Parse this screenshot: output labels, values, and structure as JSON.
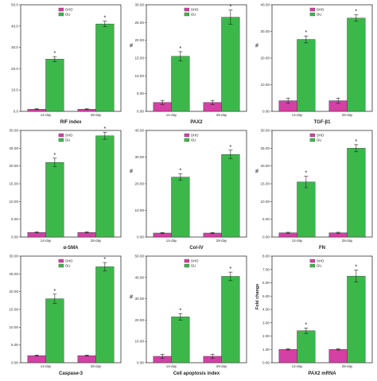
{
  "colors": {
    "sho": "#d63fa4",
    "gu": "#3cb84a",
    "axis": "#333333"
  },
  "chart_data": [
    {
      "type": "bar",
      "xlabel": "RIF index",
      "ylabel": "",
      "ylim": [
        0,
        50
      ],
      "yticks": [
        "0.0",
        "10.0",
        "20.0",
        "30.0",
        "40.0",
        "50.0"
      ],
      "categories": [
        "14-day",
        "28-day"
      ],
      "legend": [
        "SHO",
        "GU"
      ],
      "legend_position": "top-left",
      "series": [
        {
          "name": "SHO",
          "values": [
            1.0,
            1.0
          ],
          "errors": [
            0.2,
            0.2
          ]
        },
        {
          "name": "GU",
          "values": [
            24.5,
            41.0
          ],
          "errors": [
            1.2,
            1.3
          ]
        }
      ],
      "significance": [
        "*",
        "*"
      ]
    },
    {
      "type": "bar",
      "xlabel": "PAX2",
      "ylabel": "%",
      "ylim": [
        0,
        30
      ],
      "yticks": [
        "0.00",
        "5.00",
        "10.00",
        "15.00",
        "20.00",
        "25.00",
        "30.00"
      ],
      "categories": [
        "14-day",
        "28-day"
      ],
      "legend": [
        "SHO",
        "GU"
      ],
      "legend_position": "top-left",
      "series": [
        {
          "name": "SHO",
          "values": [
            2.5,
            2.5
          ],
          "errors": [
            0.6,
            0.6
          ]
        },
        {
          "name": "GU",
          "values": [
            15.5,
            26.5
          ],
          "errors": [
            1.3,
            2.0
          ]
        }
      ],
      "significance": [
        "*",
        "*"
      ]
    },
    {
      "type": "bar",
      "xlabel": "TGF-β1",
      "ylabel": "%",
      "ylim": [
        0,
        40
      ],
      "yticks": [
        "0.00",
        "10.00",
        "20.00",
        "30.00",
        "40.00"
      ],
      "categories": [
        "14-day",
        "28-day"
      ],
      "legend": [
        "SHO",
        "GU"
      ],
      "legend_position": "top-left",
      "series": [
        {
          "name": "SHO",
          "values": [
            4.0,
            4.0
          ],
          "errors": [
            1.0,
            1.0
          ]
        },
        {
          "name": "GU",
          "values": [
            27.0,
            35.0
          ],
          "errors": [
            1.3,
            1.2
          ]
        }
      ],
      "significance": [
        "*",
        "*"
      ]
    },
    {
      "type": "bar",
      "xlabel": "α-SMA",
      "ylabel": "",
      "ylim": [
        0,
        30
      ],
      "yticks": [
        "0.00",
        "5.00",
        "10.00",
        "15.00",
        "20.00",
        "25.00",
        "30.00"
      ],
      "categories": [
        "14-day",
        "28-day"
      ],
      "legend": [
        "SHO",
        "GU"
      ],
      "legend_position": "top-left",
      "series": [
        {
          "name": "SHO",
          "values": [
            1.3,
            1.3
          ],
          "errors": [
            0.15,
            0.15
          ]
        },
        {
          "name": "GU",
          "values": [
            21.0,
            28.5
          ],
          "errors": [
            1.2,
            1.0
          ]
        }
      ],
      "significance": [
        "*",
        "*"
      ]
    },
    {
      "type": "bar",
      "xlabel": "Col-IV",
      "ylabel": "%",
      "ylim": [
        0,
        40
      ],
      "yticks": [
        "0.00",
        "10.00",
        "20.00",
        "30.00",
        "40.00"
      ],
      "categories": [
        "14-day",
        "28-day"
      ],
      "legend": [
        "SHO",
        "GU"
      ],
      "legend_position": "top-left",
      "series": [
        {
          "name": "SHO",
          "values": [
            1.5,
            1.5
          ],
          "errors": [
            0.2,
            0.2
          ]
        },
        {
          "name": "GU",
          "values": [
            22.5,
            31.0
          ],
          "errors": [
            1.2,
            1.6
          ]
        }
      ],
      "significance": [
        "*",
        "*"
      ]
    },
    {
      "type": "bar",
      "xlabel": "FN",
      "ylabel": "%",
      "ylim": [
        0,
        30
      ],
      "yticks": [
        "0.00",
        "5.00",
        "10.00",
        "15.00",
        "20.00",
        "25.00",
        "30.00"
      ],
      "categories": [
        "14-day",
        "28-day"
      ],
      "legend": [
        "SHO",
        "GU"
      ],
      "legend_position": "top-left",
      "series": [
        {
          "name": "SHO",
          "values": [
            1.2,
            1.2
          ],
          "errors": [
            0.15,
            0.15
          ]
        },
        {
          "name": "GU",
          "values": [
            15.5,
            25.0
          ],
          "errors": [
            1.6,
            1.0
          ]
        }
      ],
      "significance": [
        "*",
        "*"
      ]
    },
    {
      "type": "bar",
      "xlabel": "Caspase-3",
      "ylabel": "",
      "ylim": [
        0,
        30
      ],
      "yticks": [
        "0.00",
        "5.00",
        "10.00",
        "15.00",
        "20.00",
        "25.00",
        "30.00"
      ],
      "categories": [
        "14-day",
        "28-day"
      ],
      "legend": [
        "SHO",
        "GU"
      ],
      "legend_position": "top-left",
      "series": [
        {
          "name": "SHO",
          "values": [
            2.0,
            2.0
          ],
          "errors": [
            0.15,
            0.15
          ]
        },
        {
          "name": "GU",
          "values": [
            18.0,
            27.0
          ],
          "errors": [
            1.3,
            1.2
          ]
        }
      ],
      "significance": [
        "*",
        "*"
      ]
    },
    {
      "type": "bar",
      "xlabel": "Cell apoptosis index",
      "ylabel": "%",
      "ylim": [
        0,
        50
      ],
      "yticks": [
        "0.00",
        "10.00",
        "20.00",
        "30.00",
        "40.00",
        "50.00"
      ],
      "categories": [
        "14-day",
        "28-day"
      ],
      "legend": [
        "SHO",
        "GU"
      ],
      "legend_position": "top-left",
      "series": [
        {
          "name": "SHO",
          "values": [
            3.0,
            3.0
          ],
          "errors": [
            1.0,
            1.0
          ]
        },
        {
          "name": "GU",
          "values": [
            21.5,
            40.5
          ],
          "errors": [
            1.5,
            2.0
          ]
        }
      ],
      "significance": [
        "*",
        "*"
      ]
    },
    {
      "type": "bar",
      "xlabel": "PAX2 mRNA",
      "ylabel": "Fold change",
      "ylim": [
        0,
        8
      ],
      "yticks": [
        "0.00",
        "1.00",
        "2.00",
        "3.00",
        "4.00",
        "5.00",
        "6.00",
        "7.00",
        "8.00"
      ],
      "categories": [
        "14-day",
        "28-day"
      ],
      "legend": [
        "SHO",
        "GU"
      ],
      "legend_position": "top-left",
      "series": [
        {
          "name": "SHO",
          "values": [
            1.0,
            1.0
          ],
          "errors": [
            0.05,
            0.05
          ]
        },
        {
          "name": "GU",
          "values": [
            2.4,
            6.5
          ],
          "errors": [
            0.2,
            0.45
          ]
        }
      ],
      "significance": [
        "*",
        "*"
      ]
    }
  ]
}
